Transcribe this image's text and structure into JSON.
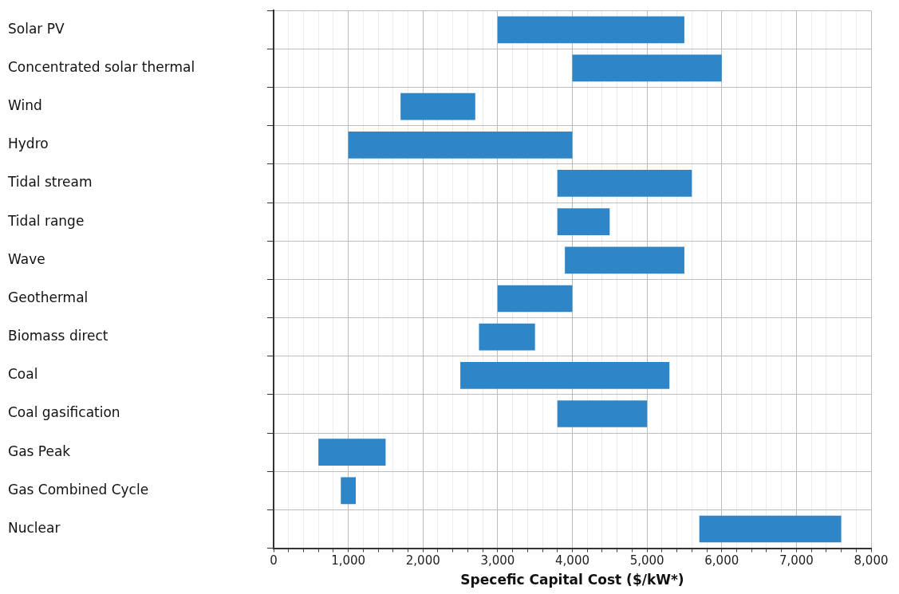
{
  "chart_data": {
    "type": "bar",
    "orientation": "horizontal",
    "xlabel": "Specefic Capital Cost ($/kW*)",
    "categories": [
      "Solar PV",
      "Concentrated solar thermal",
      "Wind",
      "Hydro",
      "Tidal stream",
      "Tidal range",
      "Wave",
      "Geothermal",
      "Biomass direct",
      "Coal",
      "Coal gasification",
      "Gas Peak",
      "Gas Combined Cycle",
      "Nuclear"
    ],
    "base": [
      3000,
      4000,
      1700,
      1000,
      3800,
      3800,
      3900,
      3000,
      2750,
      2500,
      3800,
      600,
      900,
      5700
    ],
    "values": [
      2500,
      2000,
      1000,
      3000,
      1800,
      700,
      1600,
      1000,
      750,
      2800,
      1200,
      900,
      200,
      1900
    ],
    "color": "#2e86c8",
    "xlim": [
      0,
      8000
    ],
    "xticks": [
      0,
      {
        "value": 200,
        "label": null
      },
      {
        "value": 400,
        "label": null
      },
      {
        "value": 600,
        "label": null
      },
      {
        "value": 800,
        "label": null
      },
      {
        "value": 1000,
        "label": "1,000"
      },
      {
        "value": 1200,
        "label": null
      },
      {
        "value": 1400,
        "label": null
      },
      {
        "value": 1600,
        "label": null
      },
      {
        "value": 1800,
        "label": null
      },
      {
        "value": 2000,
        "label": "2,000"
      },
      {
        "value": 2200,
        "label": null
      },
      {
        "value": 2400,
        "label": null
      },
      {
        "value": 2600,
        "label": null
      },
      {
        "value": 2800,
        "label": null
      },
      {
        "value": 3000,
        "label": "3,000"
      },
      {
        "value": 3200,
        "label": null
      },
      {
        "value": 3400,
        "label": null
      },
      {
        "value": 3600,
        "label": null
      },
      {
        "value": 3800,
        "label": null
      },
      {
        "value": 4000,
        "label": "4,000"
      },
      {
        "value": 4200,
        "label": null
      },
      {
        "value": 4400,
        "label": null
      },
      {
        "value": 4600,
        "label": null
      },
      {
        "value": 4800,
        "label": null
      },
      {
        "value": 5000,
        "label": "5,000"
      },
      {
        "value": 5200,
        "label": null
      },
      {
        "value": 5400,
        "label": null
      },
      {
        "value": 5600,
        "label": null
      },
      {
        "value": 5800,
        "label": null
      },
      {
        "value": 6000,
        "label": "6,000"
      },
      {
        "value": 6200,
        "label": null
      },
      {
        "value": 6400,
        "label": null
      },
      {
        "value": 6600,
        "label": null
      },
      {
        "value": 6800,
        "label": null
      },
      {
        "value": 7000,
        "label": "7,000"
      },
      {
        "value": 7200,
        "label": null
      },
      {
        "value": 7400,
        "label": null
      },
      {
        "value": 7600,
        "label": null
      },
      {
        "value": 7800,
        "label": null
      },
      {
        "value": 8000,
        "label": "8,000"
      }
    ],
    "grid": true,
    "legend": false
  }
}
